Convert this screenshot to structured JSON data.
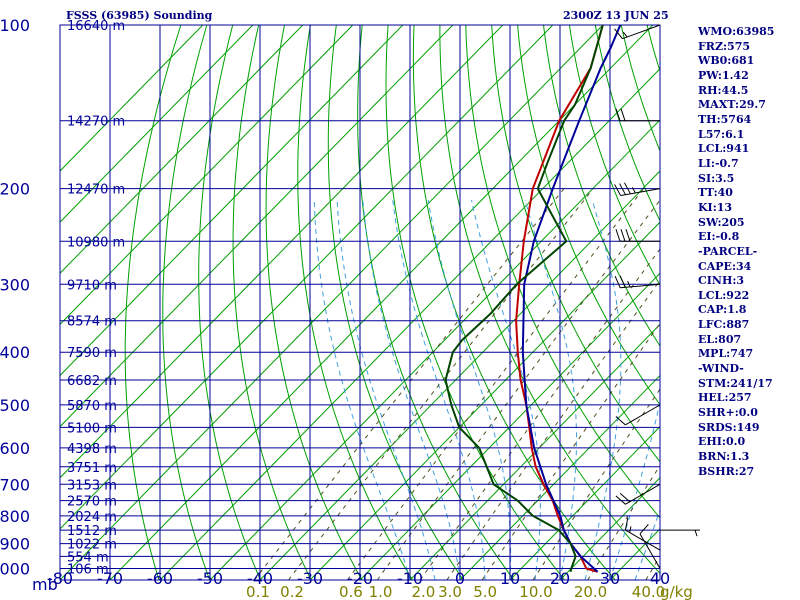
{
  "header": {
    "title": "FSSS (63985) Sounding",
    "time": "2300Z 13 JUN 25"
  },
  "indices": [
    "WMO:63985",
    "FRZ:575",
    "WB0:681",
    "PW:1.42",
    "RH:44.5",
    "MAXT:29.7",
    "TH:5764",
    "L57:6.1",
    "LCL:941",
    "LI:-0.7",
    "SI:3.5",
    "TT:40",
    "KI:13",
    "SW:205",
    "EI:-0.8",
    "-PARCEL-",
    "CAPE:34",
    "CINH:3",
    "LCL:922",
    "CAP:1.8",
    "LFC:887",
    "EL:807",
    "MPL:747",
    "-WIND-",
    "STM:241/17",
    "HEL:257",
    "SHR+:0.0",
    "SRDS:149",
    "EHI:0.0",
    "BRN:1.3",
    "BSHR:27"
  ],
  "chart_data": {
    "type": "line",
    "chart_kind": "skew-T log-P thermodynamic diagram",
    "y_axis": {
      "unit_label": "mb",
      "scale": "log",
      "range": [
        100,
        1050
      ],
      "ticks": [
        100,
        200,
        300,
        400,
        500,
        600,
        700,
        800,
        900,
        1000
      ]
    },
    "x_axis": {
      "unit": "°C",
      "ticks": [
        -80,
        -70,
        -60,
        -50,
        -40,
        -30,
        -20,
        -10,
        0,
        10,
        20,
        30,
        40
      ]
    },
    "mixing_ratio_labels": {
      "values": [
        "0.1",
        "0.2",
        "0.6",
        "1.0",
        "2.0",
        "3.0",
        "5.0",
        "10.0",
        "20.0",
        "40.0"
      ],
      "unit": "g/kg"
    },
    "heights": [
      {
        "p": 100,
        "label": "16640 m"
      },
      {
        "p": 150,
        "label": "14270 m"
      },
      {
        "p": 200,
        "label": "12470 m"
      },
      {
        "p": 250,
        "label": "10980 m"
      },
      {
        "p": 300,
        "label": "9710 m"
      },
      {
        "p": 350,
        "label": "8574 m"
      },
      {
        "p": 400,
        "label": "7590 m"
      },
      {
        "p": 450,
        "label": "6682 m"
      },
      {
        "p": 500,
        "label": "5870 m"
      },
      {
        "p": 550,
        "label": "5100 m"
      },
      {
        "p": 600,
        "label": "4398 m"
      },
      {
        "p": 650,
        "label": "3751 m"
      },
      {
        "p": 700,
        "label": "3153 m"
      },
      {
        "p": 750,
        "label": "2570 m"
      },
      {
        "p": 800,
        "label": "2024 m"
      },
      {
        "p": 850,
        "label": "1512 m"
      },
      {
        "p": 900,
        "label": "1022 m"
      },
      {
        "p": 950,
        "label": "554 m"
      },
      {
        "p": 1000,
        "label": "106 m"
      }
    ],
    "series": [
      {
        "role": "temperature",
        "color": "#c00000",
        "points": [
          [
            1014,
            25.9
          ],
          [
            1000,
            23
          ],
          [
            950,
            19.5
          ],
          [
            900,
            15
          ],
          [
            850,
            11
          ],
          [
            800,
            7
          ],
          [
            750,
            3
          ],
          [
            700,
            -2
          ],
          [
            650,
            -7
          ],
          [
            600,
            -11.5
          ],
          [
            550,
            -16
          ],
          [
            500,
            -21
          ],
          [
            450,
            -27
          ],
          [
            400,
            -33
          ],
          [
            350,
            -39.5
          ],
          [
            300,
            -46
          ],
          [
            250,
            -53.5
          ],
          [
            200,
            -62
          ],
          [
            150,
            -70
          ],
          [
            120,
            -74
          ],
          [
            100,
            -80
          ]
        ]
      },
      {
        "role": "parcel",
        "color": "#000099",
        "points": [
          [
            1014,
            25.9
          ],
          [
            950,
            19.5
          ],
          [
            900,
            15
          ],
          [
            850,
            11
          ],
          [
            800,
            7.5
          ],
          [
            700,
            -1.5
          ],
          [
            600,
            -11
          ],
          [
            500,
            -21
          ],
          [
            400,
            -32
          ],
          [
            300,
            -45
          ],
          [
            250,
            -51.5
          ],
          [
            200,
            -58
          ],
          [
            150,
            -66
          ],
          [
            120,
            -72
          ],
          [
            110,
            -74
          ],
          [
            100,
            -76.5
          ]
        ]
      },
      {
        "role": "dewpoint",
        "color": "#004400",
        "points": [
          [
            1014,
            20.5
          ],
          [
            1000,
            20
          ],
          [
            950,
            18.5
          ],
          [
            900,
            15
          ],
          [
            850,
            10
          ],
          [
            800,
            2
          ],
          [
            750,
            -4
          ],
          [
            700,
            -12
          ],
          [
            600,
            -22
          ],
          [
            550,
            -30
          ],
          [
            500,
            -36
          ],
          [
            450,
            -42
          ],
          [
            400,
            -46
          ],
          [
            380,
            -46.5
          ],
          [
            340,
            -46
          ],
          [
            300,
            -46.5
          ],
          [
            250,
            -45
          ],
          [
            200,
            -61
          ],
          [
            180,
            -64
          ],
          [
            150,
            -69
          ],
          [
            140,
            -70
          ],
          [
            120,
            -74
          ],
          [
            100,
            -80
          ]
        ]
      }
    ],
    "wind_barbs": [
      {
        "p": 100,
        "dir": 250,
        "spd": 15
      },
      {
        "p": 150,
        "dir": 270,
        "spd": 20
      },
      {
        "p": 200,
        "dir": 260,
        "spd": 35
      },
      {
        "p": 250,
        "dir": 270,
        "spd": 30
      },
      {
        "p": 300,
        "dir": 265,
        "spd": 25
      },
      {
        "p": 500,
        "dir": 240,
        "spd": 10
      },
      {
        "p": 700,
        "dir": 240,
        "spd": 20
      },
      {
        "p": 850,
        "dir": 90,
        "spd": 5
      },
      {
        "p": 925,
        "dir": 300,
        "spd": 15
      },
      {
        "p": 1000,
        "dir": 330,
        "spd": 10
      }
    ],
    "grid": true
  }
}
